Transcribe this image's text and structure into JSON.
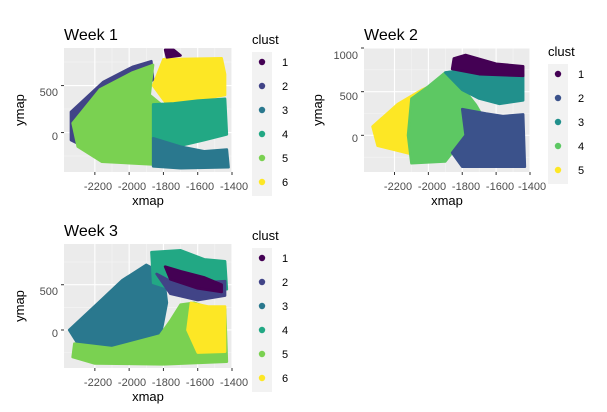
{
  "colors": {
    "panel_bg": "#ebebeb",
    "grid_major": "#ffffff",
    "tick_text": "#4d4d4d",
    "palette": [
      "#440154",
      "#414487",
      "#2a788e",
      "#22a884",
      "#7ad151",
      "#fde725"
    ],
    "palette5": [
      "#440154",
      "#3b528b",
      "#21908c",
      "#5dc863",
      "#fde725"
    ]
  },
  "chart_data": [
    {
      "type": "scatter",
      "title": "Week 1",
      "xlabel": "xmap",
      "ylabel": "ymap",
      "xlim": [
        -2380,
        -1400
      ],
      "ylim": [
        -420,
        900
      ],
      "x_ticks": [
        "-2200",
        "-2000",
        "-1800",
        "-1600",
        "-1400"
      ],
      "y_ticks": [
        "0",
        "500"
      ],
      "legend": {
        "title": "clust",
        "entries": [
          "1",
          "2",
          "3",
          "4",
          "5",
          "6"
        ],
        "position": "right"
      },
      "regions": [
        {
          "cluster": "2",
          "points": [
            [
              -2340,
              220
            ],
            [
              -2150,
              540
            ],
            [
              -1980,
              700
            ],
            [
              -1870,
              760
            ],
            [
              -1860,
              560
            ],
            [
              -2100,
              300
            ],
            [
              -2200,
              100
            ],
            [
              -2210,
              -200
            ],
            [
              -2340,
              -80
            ]
          ]
        },
        {
          "cluster": "5",
          "points": [
            [
              -2330,
              100
            ],
            [
              -2170,
              460
            ],
            [
              -1980,
              640
            ],
            [
              -1860,
              720
            ],
            [
              -1880,
              400
            ],
            [
              -1780,
              250
            ],
            [
              -1720,
              80
            ],
            [
              -1840,
              -120
            ],
            [
              -1860,
              -340
            ],
            [
              -2160,
              -310
            ],
            [
              -2300,
              -150
            ]
          ]
        },
        {
          "cluster": "6",
          "points": [
            [
              -1860,
              500
            ],
            [
              -1800,
              780
            ],
            [
              -1460,
              790
            ],
            [
              -1440,
              620
            ],
            [
              -1440,
              400
            ],
            [
              -1620,
              340
            ],
            [
              -1780,
              300
            ]
          ]
        },
        {
          "cluster": "4",
          "points": [
            [
              -1860,
              300
            ],
            [
              -1740,
              310
            ],
            [
              -1600,
              340
            ],
            [
              -1440,
              360
            ],
            [
              -1430,
              -20
            ],
            [
              -1560,
              -80
            ],
            [
              -1700,
              -140
            ],
            [
              -1860,
              -60
            ]
          ]
        },
        {
          "cluster": "3",
          "points": [
            [
              -1860,
              -60
            ],
            [
              -1700,
              -150
            ],
            [
              -1560,
              -200
            ],
            [
              -1430,
              -180
            ],
            [
              -1420,
              -370
            ],
            [
              -1700,
              -380
            ],
            [
              -1860,
              -360
            ]
          ]
        },
        {
          "cluster": "1",
          "points": [
            [
              -1790,
              880
            ],
            [
              -1740,
              880
            ],
            [
              -1700,
              820
            ],
            [
              -1780,
              800
            ]
          ]
        }
      ]
    },
    {
      "type": "scatter",
      "title": "Week 2",
      "xlabel": "xmap",
      "ylabel": "ymap",
      "xlim": [
        -2380,
        -1400
      ],
      "ylim": [
        -420,
        1000
      ],
      "x_ticks": [
        "-2200",
        "-2000",
        "-1800",
        "-1600",
        "-1400"
      ],
      "y_ticks": [
        "0",
        "500",
        "1000"
      ],
      "legend": {
        "title": "clust",
        "entries": [
          "1",
          "2",
          "3",
          "4",
          "5"
        ],
        "position": "right"
      },
      "regions": [
        {
          "cluster": "5",
          "points": [
            [
              -2330,
              100
            ],
            [
              -2180,
              360
            ],
            [
              -2040,
              520
            ],
            [
              -1900,
              640
            ],
            [
              -1860,
              500
            ],
            [
              -2000,
              200
            ],
            [
              -2090,
              -220
            ],
            [
              -2300,
              -120
            ]
          ]
        },
        {
          "cluster": "4",
          "points": [
            [
              -2100,
              420
            ],
            [
              -2000,
              560
            ],
            [
              -1900,
              720
            ],
            [
              -1800,
              740
            ],
            [
              -1780,
              500
            ],
            [
              -1720,
              350
            ],
            [
              -1660,
              150
            ],
            [
              -1800,
              -50
            ],
            [
              -1900,
              -300
            ],
            [
              -2100,
              -320
            ],
            [
              -2120,
              0
            ]
          ]
        },
        {
          "cluster": "2",
          "points": [
            [
              -1800,
              300
            ],
            [
              -1660,
              250
            ],
            [
              -1560,
              220
            ],
            [
              -1440,
              240
            ],
            [
              -1430,
              -360
            ],
            [
              -1800,
              -360
            ],
            [
              -1860,
              -200
            ],
            [
              -1780,
              0
            ]
          ]
        },
        {
          "cluster": "3",
          "points": [
            [
              -1900,
              720
            ],
            [
              -1760,
              760
            ],
            [
              -1540,
              720
            ],
            [
              -1440,
              700
            ],
            [
              -1440,
              400
            ],
            [
              -1580,
              360
            ],
            [
              -1700,
              420
            ],
            [
              -1800,
              520
            ]
          ]
        },
        {
          "cluster": "1",
          "points": [
            [
              -1850,
              880
            ],
            [
              -1780,
              920
            ],
            [
              -1600,
              820
            ],
            [
              -1440,
              790
            ],
            [
              -1440,
              680
            ],
            [
              -1700,
              700
            ],
            [
              -1860,
              760
            ]
          ]
        }
      ]
    },
    {
      "type": "scatter",
      "title": "Week 3",
      "xlabel": "xmap",
      "ylabel": "ymap",
      "xlim": [
        -2380,
        -1400
      ],
      "ylim": [
        -420,
        950
      ],
      "x_ticks": [
        "-2200",
        "-2000",
        "-1800",
        "-1600",
        "-1400"
      ],
      "y_ticks": [
        "0",
        "500"
      ],
      "legend": {
        "title": "clust",
        "entries": [
          "1",
          "2",
          "3",
          "4",
          "5",
          "6"
        ],
        "position": "right"
      },
      "regions": [
        {
          "cluster": "3",
          "points": [
            [
              -2350,
              0
            ],
            [
              -2180,
              300
            ],
            [
              -2040,
              550
            ],
            [
              -1900,
              720
            ],
            [
              -1800,
              620
            ],
            [
              -1780,
              300
            ],
            [
              -1820,
              -100
            ],
            [
              -2100,
              -200
            ],
            [
              -2300,
              -150
            ]
          ]
        },
        {
          "cluster": "5",
          "points": [
            [
              -2320,
              -150
            ],
            [
              -2100,
              -200
            ],
            [
              -1820,
              -60
            ],
            [
              -1760,
              100
            ],
            [
              -1700,
              280
            ],
            [
              -1620,
              300
            ],
            [
              -1540,
              250
            ],
            [
              -1440,
              230
            ],
            [
              -1430,
              -350
            ],
            [
              -1800,
              -380
            ],
            [
              -2200,
              -370
            ],
            [
              -2330,
              -300
            ]
          ]
        },
        {
          "cluster": "6",
          "points": [
            [
              -1640,
              300
            ],
            [
              -1540,
              260
            ],
            [
              -1440,
              260
            ],
            [
              -1440,
              -240
            ],
            [
              -1600,
              -250
            ],
            [
              -1660,
              0
            ]
          ]
        },
        {
          "cluster": "4",
          "points": [
            [
              -1870,
              860
            ],
            [
              -1700,
              880
            ],
            [
              -1560,
              780
            ],
            [
              -1440,
              760
            ],
            [
              -1430,
              450
            ],
            [
              -1600,
              440
            ],
            [
              -1760,
              460
            ],
            [
              -1860,
              520
            ]
          ]
        },
        {
          "cluster": "2",
          "points": [
            [
              -1840,
              620
            ],
            [
              -1760,
              540
            ],
            [
              -1620,
              520
            ],
            [
              -1440,
              540
            ],
            [
              -1440,
              380
            ],
            [
              -1600,
              330
            ],
            [
              -1760,
              400
            ]
          ]
        },
        {
          "cluster": "1",
          "points": [
            [
              -1790,
              700
            ],
            [
              -1700,
              650
            ],
            [
              -1560,
              580
            ],
            [
              -1460,
              500
            ],
            [
              -1460,
              420
            ],
            [
              -1600,
              460
            ],
            [
              -1760,
              560
            ]
          ]
        }
      ]
    }
  ]
}
